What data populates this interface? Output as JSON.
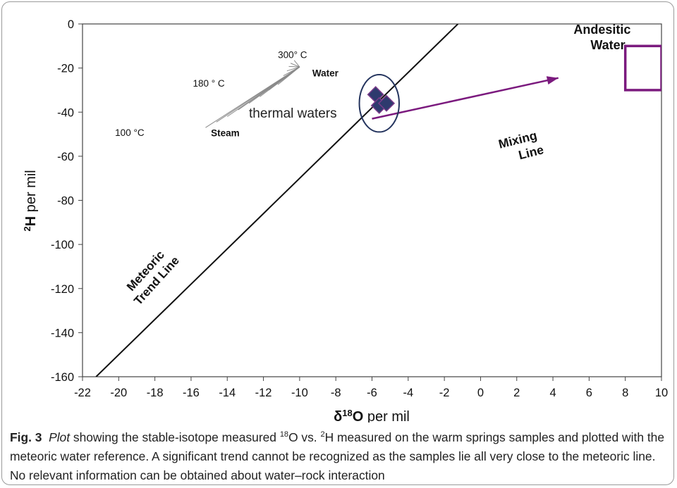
{
  "chart_data": {
    "type": "scatter",
    "xlabel": {
      "main": "δ",
      "sup": "18",
      "tail": "O",
      "rest": " per mil"
    },
    "ylabel": {
      "sup": "2",
      "main": "H",
      "rest": " per mil"
    },
    "xlim": [
      -22,
      10
    ],
    "ylim": [
      -160,
      0
    ],
    "x_ticks": [
      "-22",
      "-20",
      "-18",
      "-16",
      "-14",
      "-12",
      "-10",
      "-8",
      "-6",
      "-4",
      "-2",
      "0",
      "2",
      "4",
      "6",
      "8",
      "10"
    ],
    "y_ticks": [
      "0",
      "-20",
      "-40",
      "-60",
      "-80",
      "-100",
      "-120",
      "-140",
      "-160"
    ],
    "grid": false,
    "meteoric_line": {
      "name_line1": "Meteoric",
      "name_line2": "Trend Line",
      "points": [
        [
          -21.25,
          -160
        ],
        [
          -1.25,
          0
        ]
      ]
    },
    "samples": {
      "points": [
        [
          -5.8,
          -32
        ],
        [
          -5.6,
          -37
        ],
        [
          -5.2,
          -36
        ]
      ],
      "color": "#2e3a6e",
      "edge_color": "#7a3a8a"
    },
    "mixing_line": {
      "label_line1": "Mixing",
      "label_line2": "Line",
      "from": [
        -6,
        -43
      ],
      "to": [
        4.3,
        -24.5
      ],
      "color": "#7b1a7e"
    },
    "andesitic_water": {
      "label_line1": "Andesitic",
      "label_line2": "Water",
      "x": [
        8,
        10
      ],
      "y": [
        -30,
        -10
      ],
      "color": "#7b1a7e"
    },
    "thermal_waters": {
      "label": "thermal waters",
      "center": [
        -5.6,
        -36
      ],
      "rx": 1.1,
      "ry": 13
    },
    "steam_water_fan": {
      "water_point": [
        -10.0,
        -19.5
      ],
      "steam_ends": [
        [
          -15.2,
          -47
        ],
        [
          -14.6,
          -44.5
        ],
        [
          -14.0,
          -42
        ],
        [
          -13.4,
          -39
        ],
        [
          -12.8,
          -36
        ],
        [
          -12.2,
          -33
        ],
        [
          -11.7,
          -30
        ],
        [
          -11.2,
          -27.5
        ],
        [
          -11.0,
          -25.5
        ],
        [
          -10.9,
          -23.5
        ],
        [
          -10.7,
          -21.3
        ],
        [
          -10.6,
          -19.3
        ],
        [
          -10.5,
          -17.8
        ],
        [
          -10.3,
          -16.5
        ]
      ],
      "labels": {
        "t300": "300° C",
        "t180": "180 ° C",
        "t100": "100 °C",
        "water": "Water",
        "steam": "Steam"
      },
      "color": "#8a8a8a"
    }
  },
  "caption": {
    "fig_label": "Fig. 3",
    "italic": "Plot",
    "part1": " showing the stable-isotope measured ",
    "sup1": "18",
    "part2": "O vs. ",
    "sup2": "2",
    "part3": "H measured on the warm springs samples and plotted with the meteoric water reference. A significant trend cannot be recognized as the samples lie all very close to the meteoric line. No relevant information can be obtained about water–rock interaction"
  }
}
